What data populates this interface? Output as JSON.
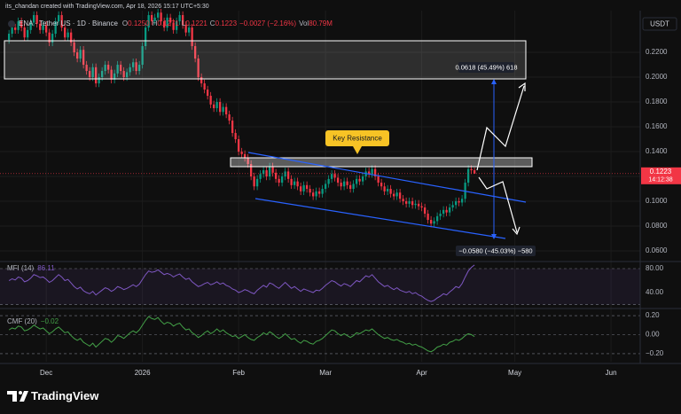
{
  "header": {
    "credit": "its_chandan created with TradingView.com, Apr 18, 2026 15:17 UTC+5:30",
    "symbol": "ENA · Tether US · 1D · Binance",
    "ohlc": [
      {
        "key": "O",
        "value": "0.1250"
      },
      {
        "key": "H",
        "value": "0.1271"
      },
      {
        "key": "L",
        "value": "0.1221"
      },
      {
        "key": "C",
        "value": "0.1223"
      }
    ],
    "change": "−0.0027 (−2.16%)",
    "volume_key": "Vol",
    "volume": "80.79M",
    "currency": "USDT"
  },
  "annotations": {
    "key_resistance": "Key Resistance",
    "measure_up": "0.0618 (45.49%) 618",
    "measure_down": "−0.0580 (−45.03%) −580"
  },
  "footer": {
    "brand": "TradingView"
  },
  "chart_data": [
    {
      "type": "candlestick",
      "up_color": "#089981",
      "down_color": "#f23645",
      "open": [
        0.23,
        0.235,
        0.24,
        0.238,
        0.245,
        0.24,
        0.232,
        0.238,
        0.244,
        0.25,
        0.243,
        0.238,
        0.242,
        0.236,
        0.228,
        0.235,
        0.245,
        0.25,
        0.24,
        0.232,
        0.236,
        0.228,
        0.22,
        0.215,
        0.222,
        0.21,
        0.205,
        0.2,
        0.208,
        0.195,
        0.2,
        0.205,
        0.21,
        0.206,
        0.198,
        0.203,
        0.21,
        0.205,
        0.2,
        0.204,
        0.208,
        0.212,
        0.205,
        0.21,
        0.225,
        0.24,
        0.25,
        0.245,
        0.248,
        0.252,
        0.245,
        0.24,
        0.248,
        0.244,
        0.238,
        0.245,
        0.25,
        0.242,
        0.236,
        0.24,
        0.225,
        0.215,
        0.2,
        0.195,
        0.19,
        0.185,
        0.178,
        0.175,
        0.18,
        0.172,
        0.176,
        0.17,
        0.165,
        0.155,
        0.15,
        0.14,
        0.138,
        0.135,
        0.13,
        0.12,
        0.112,
        0.118,
        0.122,
        0.125,
        0.12,
        0.128,
        0.123,
        0.118,
        0.115,
        0.12,
        0.124,
        0.118,
        0.113,
        0.116,
        0.112,
        0.108,
        0.113,
        0.11,
        0.107,
        0.104,
        0.108,
        0.106,
        0.11,
        0.114,
        0.118,
        0.122,
        0.119,
        0.115,
        0.112,
        0.116,
        0.113,
        0.11,
        0.114,
        0.118,
        0.116,
        0.12,
        0.124,
        0.122,
        0.126,
        0.12,
        0.115,
        0.112,
        0.108,
        0.11,
        0.106,
        0.104,
        0.107,
        0.102,
        0.1,
        0.098,
        0.1,
        0.097,
        0.098,
        0.096,
        0.095,
        0.09,
        0.085,
        0.082,
        0.084,
        0.088,
        0.09,
        0.093,
        0.091,
        0.095,
        0.097,
        0.1,
        0.099,
        0.102,
        0.115,
        0.126,
        0.125
      ],
      "high": [
        0.238,
        0.243,
        0.243,
        0.248,
        0.248,
        0.243,
        0.241,
        0.247,
        0.253,
        0.253,
        0.246,
        0.245,
        0.245,
        0.239,
        0.238,
        0.248,
        0.253,
        0.253,
        0.243,
        0.239,
        0.239,
        0.231,
        0.223,
        0.225,
        0.225,
        0.213,
        0.208,
        0.211,
        0.211,
        0.203,
        0.208,
        0.213,
        0.213,
        0.209,
        0.206,
        0.213,
        0.213,
        0.208,
        0.207,
        0.211,
        0.215,
        0.215,
        0.213,
        0.228,
        0.243,
        0.253,
        0.253,
        0.251,
        0.255,
        0.255,
        0.248,
        0.251,
        0.251,
        0.247,
        0.248,
        0.253,
        0.253,
        0.245,
        0.243,
        0.243,
        0.228,
        0.218,
        0.203,
        0.198,
        0.193,
        0.188,
        0.181,
        0.183,
        0.183,
        0.179,
        0.179,
        0.173,
        0.168,
        0.158,
        0.153,
        0.143,
        0.141,
        0.138,
        0.133,
        0.123,
        0.121,
        0.125,
        0.128,
        0.128,
        0.131,
        0.131,
        0.126,
        0.121,
        0.123,
        0.127,
        0.127,
        0.121,
        0.119,
        0.119,
        0.115,
        0.116,
        0.116,
        0.113,
        0.11,
        0.111,
        0.111,
        0.113,
        0.117,
        0.121,
        0.125,
        0.125,
        0.122,
        0.118,
        0.119,
        0.119,
        0.116,
        0.117,
        0.121,
        0.121,
        0.123,
        0.127,
        0.127,
        0.129,
        0.129,
        0.123,
        0.118,
        0.115,
        0.113,
        0.113,
        0.109,
        0.11,
        0.11,
        0.105,
        0.103,
        0.103,
        0.103,
        0.101,
        0.101,
        0.099,
        0.098,
        0.093,
        0.088,
        0.087,
        0.091,
        0.093,
        0.096,
        0.096,
        0.098,
        0.1,
        0.103,
        0.103,
        0.105,
        0.118,
        0.129,
        0.129,
        0.1271
      ],
      "low": [
        0.227,
        0.232,
        0.235,
        0.235,
        0.237,
        0.229,
        0.229,
        0.235,
        0.241,
        0.24,
        0.235,
        0.235,
        0.233,
        0.225,
        0.225,
        0.232,
        0.242,
        0.237,
        0.229,
        0.229,
        0.225,
        0.217,
        0.212,
        0.212,
        0.207,
        0.202,
        0.197,
        0.197,
        0.192,
        0.192,
        0.197,
        0.202,
        0.203,
        0.195,
        0.195,
        0.2,
        0.202,
        0.197,
        0.197,
        0.201,
        0.205,
        0.202,
        0.202,
        0.207,
        0.222,
        0.237,
        0.242,
        0.242,
        0.245,
        0.242,
        0.237,
        0.237,
        0.241,
        0.235,
        0.235,
        0.242,
        0.239,
        0.233,
        0.233,
        0.222,
        0.212,
        0.197,
        0.192,
        0.187,
        0.182,
        0.175,
        0.172,
        0.172,
        0.169,
        0.169,
        0.167,
        0.162,
        0.152,
        0.147,
        0.137,
        0.135,
        0.132,
        0.127,
        0.117,
        0.109,
        0.109,
        0.115,
        0.119,
        0.117,
        0.117,
        0.12,
        0.115,
        0.112,
        0.112,
        0.117,
        0.115,
        0.11,
        0.11,
        0.109,
        0.105,
        0.105,
        0.107,
        0.104,
        0.101,
        0.101,
        0.103,
        0.103,
        0.107,
        0.111,
        0.115,
        0.116,
        0.112,
        0.109,
        0.109,
        0.11,
        0.107,
        0.107,
        0.111,
        0.113,
        0.113,
        0.117,
        0.119,
        0.119,
        0.117,
        0.112,
        0.109,
        0.105,
        0.105,
        0.103,
        0.101,
        0.101,
        0.099,
        0.097,
        0.095,
        0.095,
        0.094,
        0.094,
        0.093,
        0.092,
        0.087,
        0.082,
        0.079,
        0.079,
        0.081,
        0.085,
        0.087,
        0.088,
        0.088,
        0.092,
        0.094,
        0.096,
        0.096,
        0.099,
        0.112,
        0.122,
        0.1221
      ],
      "close": [
        0.235,
        0.24,
        0.238,
        0.245,
        0.24,
        0.232,
        0.238,
        0.244,
        0.25,
        0.243,
        0.238,
        0.242,
        0.236,
        0.228,
        0.235,
        0.245,
        0.25,
        0.24,
        0.232,
        0.236,
        0.228,
        0.22,
        0.215,
        0.222,
        0.21,
        0.205,
        0.2,
        0.208,
        0.195,
        0.2,
        0.205,
        0.21,
        0.206,
        0.198,
        0.203,
        0.21,
        0.205,
        0.2,
        0.204,
        0.208,
        0.212,
        0.205,
        0.21,
        0.225,
        0.24,
        0.25,
        0.245,
        0.248,
        0.252,
        0.245,
        0.24,
        0.248,
        0.244,
        0.238,
        0.245,
        0.25,
        0.242,
        0.236,
        0.24,
        0.225,
        0.215,
        0.2,
        0.195,
        0.19,
        0.185,
        0.178,
        0.175,
        0.18,
        0.172,
        0.176,
        0.17,
        0.165,
        0.155,
        0.15,
        0.14,
        0.138,
        0.135,
        0.13,
        0.12,
        0.112,
        0.118,
        0.122,
        0.125,
        0.12,
        0.128,
        0.123,
        0.118,
        0.115,
        0.12,
        0.124,
        0.118,
        0.113,
        0.116,
        0.112,
        0.108,
        0.113,
        0.11,
        0.107,
        0.104,
        0.108,
        0.106,
        0.11,
        0.114,
        0.118,
        0.122,
        0.119,
        0.115,
        0.112,
        0.116,
        0.113,
        0.11,
        0.114,
        0.118,
        0.116,
        0.12,
        0.124,
        0.122,
        0.126,
        0.12,
        0.115,
        0.112,
        0.108,
        0.11,
        0.106,
        0.104,
        0.107,
        0.102,
        0.1,
        0.098,
        0.1,
        0.097,
        0.098,
        0.096,
        0.095,
        0.09,
        0.085,
        0.082,
        0.084,
        0.088,
        0.09,
        0.093,
        0.091,
        0.095,
        0.097,
        0.1,
        0.099,
        0.102,
        0.115,
        0.126,
        0.125,
        0.1223
      ],
      "last_value_label": "0.1223",
      "countdown": "14:12:38",
      "ylim": [
        0.0536,
        0.2536
      ],
      "yticks": [
        {
          "value": 0.06,
          "label": "0.0600"
        },
        {
          "value": 0.08,
          "label": "0.0800"
        },
        {
          "value": 0.1,
          "label": "0.1000"
        },
        {
          "value": 0.12,
          "label": "0.1200"
        },
        {
          "value": 0.14,
          "label": "0.1400"
        },
        {
          "value": 0.16,
          "label": "0.1600"
        },
        {
          "value": 0.18,
          "label": "0.1800"
        },
        {
          "value": 0.2,
          "label": "0.2000"
        },
        {
          "value": 0.22,
          "label": "0.2200"
        }
      ],
      "xlim": [
        -2.9,
        203.4
      ],
      "xticks": [
        {
          "value": 12,
          "label": "Dec"
        },
        {
          "value": 43,
          "label": "2026"
        },
        {
          "value": 74,
          "label": "Feb"
        },
        {
          "value": 102,
          "label": "Mar"
        },
        {
          "value": 133,
          "label": "Apr"
        },
        {
          "value": 163,
          "label": "May"
        },
        {
          "value": 194,
          "label": "Jun"
        }
      ]
    },
    {
      "type": "line",
      "name": "MFI (14)",
      "value_label": "86.11",
      "color": "#7e57c2",
      "band": [
        20,
        80
      ],
      "values": [
        60,
        63,
        61,
        66,
        64,
        58,
        60,
        64,
        70,
        68,
        65,
        66,
        62,
        57,
        60,
        65,
        70,
        66,
        60,
        62,
        56,
        50,
        46,
        49,
        43,
        40,
        38,
        42,
        36,
        40,
        44,
        48,
        46,
        42,
        45,
        50,
        48,
        45,
        47,
        50,
        53,
        50,
        54,
        62,
        70,
        76,
        74,
        75,
        78,
        74,
        70,
        72,
        70,
        66,
        69,
        71,
        66,
        62,
        64,
        58,
        54,
        50,
        52,
        55,
        57,
        53,
        55,
        58,
        54,
        56,
        52,
        50,
        46,
        44,
        40,
        42,
        45,
        43,
        40,
        38,
        44,
        48,
        52,
        49,
        56,
        54,
        50,
        47,
        52,
        57,
        52,
        47,
        50,
        46,
        42,
        46,
        44,
        42,
        40,
        44,
        43,
        47,
        52,
        56,
        60,
        58,
        54,
        51,
        55,
        53,
        50,
        55,
        60,
        58,
        63,
        68,
        66,
        70,
        64,
        58,
        54,
        50,
        52,
        48,
        45,
        48,
        44,
        42,
        40,
        42,
        38,
        40,
        36,
        34,
        30,
        27,
        25,
        27,
        31,
        34,
        38,
        36,
        41,
        45,
        50,
        48,
        55,
        66,
        76,
        82,
        86.11
      ],
      "ylim": [
        17.8,
        88.9
      ],
      "yticks": [
        {
          "value": 40,
          "label": "40.00"
        },
        {
          "value": 80,
          "label": "80.00"
        }
      ]
    },
    {
      "type": "line",
      "name": "CMF (20)",
      "value_label": "−0.02",
      "color": "#43a047",
      "values": [
        0.05,
        0.07,
        0.06,
        0.09,
        0.08,
        0.04,
        0.05,
        0.07,
        0.1,
        0.08,
        0.06,
        0.07,
        0.04,
        0.01,
        0.03,
        0.06,
        0.08,
        0.05,
        0.02,
        0.03,
        -0.01,
        -0.04,
        -0.06,
        -0.04,
        -0.08,
        -0.1,
        -0.12,
        -0.09,
        -0.13,
        -0.1,
        -0.07,
        -0.04,
        -0.05,
        -0.08,
        -0.05,
        -0.01,
        -0.02,
        -0.04,
        -0.01,
        0.02,
        0.04,
        0.02,
        0.05,
        0.1,
        0.15,
        0.19,
        0.17,
        0.16,
        0.18,
        0.14,
        0.11,
        0.13,
        0.12,
        0.09,
        0.11,
        0.12,
        0.08,
        0.05,
        0.06,
        0.02,
        0,
        -0.03,
        -0.01,
        0.02,
        0.04,
        0.01,
        0.03,
        0.06,
        0.03,
        0.05,
        0.02,
        0,
        -0.02,
        -0.01,
        -0.04,
        -0.02,
        0,
        -0.03,
        -0.05,
        -0.06,
        -0.03,
        -0.01,
        0.02,
        0,
        0.03,
        0.01,
        -0.02,
        -0.04,
        -0.02,
        0.01,
        -0.02,
        -0.05,
        -0.04,
        -0.07,
        -0.09,
        -0.06,
        -0.07,
        -0.09,
        -0.1,
        -0.07,
        -0.06,
        -0.04,
        -0.01,
        0.02,
        0.05,
        0.04,
        0.01,
        -0.01,
        0.01,
        -0.01,
        -0.03,
        -0.01,
        0.02,
        0.01,
        0.03,
        0.05,
        0.04,
        0.06,
        0.03,
        0,
        -0.02,
        -0.04,
        -0.03,
        -0.05,
        -0.06,
        -0.05,
        -0.07,
        -0.08,
        -0.1,
        -0.09,
        -0.11,
        -0.1,
        -0.12,
        -0.13,
        -0.15,
        -0.17,
        -0.18,
        -0.16,
        -0.13,
        -0.12,
        -0.1,
        -0.11,
        -0.08,
        -0.07,
        -0.05,
        -0.06,
        -0.04,
        -0.01,
        0.01,
        0,
        -0.02
      ],
      "ylim": [
        -0.284,
        0.256
      ],
      "yticks": [
        {
          "value": -0.2,
          "label": "−0.20"
        },
        {
          "value": 0,
          "label": "0.00"
        },
        {
          "value": 0.2,
          "label": "0.20"
        }
      ]
    }
  ]
}
